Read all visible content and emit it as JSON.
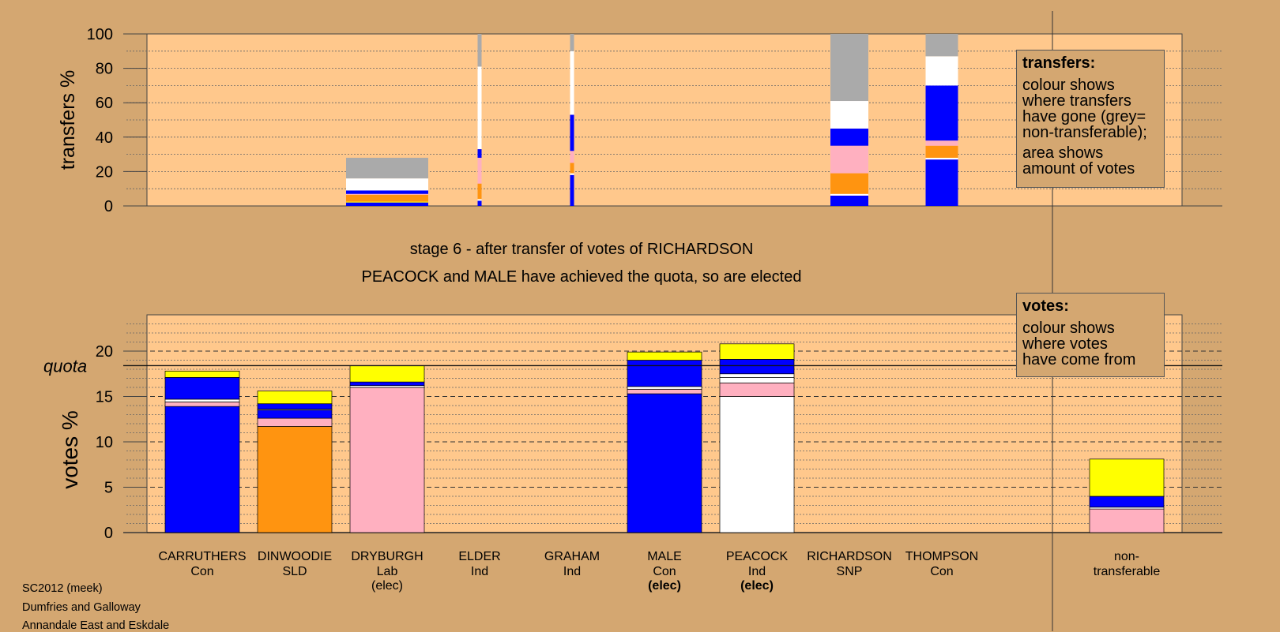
{
  "chart_data": {
    "type": "bar",
    "stage_text": "stage 6 - after transfer of votes of RICHARDSON",
    "result_text": "PEACOCK and MALE have achieved the quota, so are elected",
    "colors": {
      "Con": "#0000ff",
      "SLD": "#ff9410",
      "Lab": "#ffb0c0",
      "Ind": "#ffffff",
      "SNP": "#ffff00",
      "nontransferable": "#aaaaaa",
      "plot_bg": "#ffc88c",
      "page_bg": "#d4a771"
    },
    "transfers": {
      "ylabel": "transfers %",
      "ylim": [
        0,
        100
      ],
      "yticks": [
        0,
        20,
        40,
        60,
        80,
        100
      ],
      "bars": [
        {
          "candidate": "DRYBURGH",
          "segments": [
            {
              "party": "Con",
              "value": 2
            },
            {
              "party": "SNP",
              "value": 0.5
            },
            {
              "party": "SLD",
              "value": 4
            },
            {
              "party": "Lab",
              "value": 0.5
            },
            {
              "party": "Con",
              "value": 2
            },
            {
              "party": "Ind",
              "value": 7
            },
            {
              "party": "nontransferable",
              "value": 12
            }
          ]
        },
        {
          "candidate": "ELDER",
          "segments": [
            {
              "party": "Con",
              "value": 3
            },
            {
              "party": "Ind",
              "value": 1
            },
            {
              "party": "SLD",
              "value": 9
            },
            {
              "party": "Lab",
              "value": 15
            },
            {
              "party": "Con",
              "value": 5
            },
            {
              "party": "Ind",
              "value": 48
            },
            {
              "party": "nontransferable",
              "value": 19
            }
          ]
        },
        {
          "candidate": "GRAHAM",
          "segments": [
            {
              "party": "Con",
              "value": 18
            },
            {
              "party": "Ind",
              "value": 1
            },
            {
              "party": "SLD",
              "value": 6
            },
            {
              "party": "Lab",
              "value": 7
            },
            {
              "party": "Con",
              "value": 21
            },
            {
              "party": "Ind",
              "value": 37
            },
            {
              "party": "nontransferable",
              "value": 10
            }
          ]
        },
        {
          "candidate": "RICHARDSON",
          "segments": [
            {
              "party": "Con",
              "value": 6
            },
            {
              "party": "Ind",
              "value": 1
            },
            {
              "party": "SLD",
              "value": 12
            },
            {
              "party": "Lab",
              "value": 16
            },
            {
              "party": "Con",
              "value": 10
            },
            {
              "party": "Ind",
              "value": 16
            },
            {
              "party": "nontransferable",
              "value": 39
            }
          ]
        },
        {
          "candidate": "THOMPSON",
          "segments": [
            {
              "party": "Con",
              "value": 27
            },
            {
              "party": "Ind",
              "value": 1
            },
            {
              "party": "SLD",
              "value": 7
            },
            {
              "party": "Lab",
              "value": 3
            },
            {
              "party": "Con",
              "value": 32
            },
            {
              "party": "Ind",
              "value": 17
            },
            {
              "party": "nontransferable",
              "value": 13
            }
          ]
        }
      ]
    },
    "votes": {
      "ylabel": "votes %",
      "ylim": [
        0,
        24
      ],
      "yticks": [
        0,
        5,
        10,
        15,
        20
      ],
      "quota": 18.4,
      "quota_label": "quota",
      "candidates": [
        {
          "name": "CARRUTHERS",
          "party": "Con",
          "status": "",
          "segments": [
            {
              "party": "Con",
              "value": 13.9
            },
            {
              "party": "Lab",
              "value": 0.5
            },
            {
              "party": "Ind",
              "value": 0.3
            },
            {
              "party": "Con",
              "value": 2.4
            },
            {
              "party": "SNP",
              "value": 0.7
            }
          ]
        },
        {
          "name": "DINWOODIE",
          "party": "SLD",
          "status": "",
          "segments": [
            {
              "party": "SLD",
              "value": 11.7
            },
            {
              "party": "Lab",
              "value": 0.9
            },
            {
              "party": "Con",
              "value": 0.9
            },
            {
              "party": "Ind",
              "value": 0.1
            },
            {
              "party": "Con",
              "value": 0.6
            },
            {
              "party": "SNP",
              "value": 1.4
            }
          ]
        },
        {
          "name": "DRYBURGH",
          "party": "Lab",
          "status": "(elec)",
          "segments": [
            {
              "party": "Lab",
              "value": 16.0
            },
            {
              "party": "Ind",
              "value": 0.2
            },
            {
              "party": "Con",
              "value": 0.4
            },
            {
              "party": "SNP",
              "value": 1.8
            }
          ]
        },
        {
          "name": "ELDER",
          "party": "Ind",
          "status": "",
          "segments": []
        },
        {
          "name": "GRAHAM",
          "party": "Ind",
          "status": "",
          "segments": []
        },
        {
          "name": "MALE",
          "party": "Con",
          "status": "(elec)",
          "segments": [
            {
              "party": "Con",
              "value": 15.3
            },
            {
              "party": "Lab",
              "value": 0.5
            },
            {
              "party": "Ind",
              "value": 0.3
            },
            {
              "party": "Con",
              "value": 2.9
            },
            {
              "party": "SNP",
              "value": 0.9
            }
          ]
        },
        {
          "name": "PEACOCK",
          "party": "Ind",
          "status": "(elec)",
          "segments": [
            {
              "party": "Ind",
              "value": 15.0
            },
            {
              "party": "Lab",
              "value": 1.5
            },
            {
              "party": "Ind",
              "value": 0.6
            },
            {
              "party": "Ind",
              "value": 0.4
            },
            {
              "party": "Con",
              "value": 1.6
            },
            {
              "party": "SNP",
              "value": 1.7
            }
          ]
        },
        {
          "name": "RICHARDSON",
          "party": "SNP",
          "status": "",
          "segments": []
        },
        {
          "name": "THOMPSON",
          "party": "Con",
          "status": "",
          "segments": []
        }
      ],
      "nontransferable": {
        "label_line1": "non-",
        "label_line2": "transferable",
        "segments": [
          {
            "party": "Lab",
            "value": 2.6
          },
          {
            "party": "Ind",
            "value": 0.2
          },
          {
            "party": "Con",
            "value": 1.2
          },
          {
            "party": "SNP",
            "value": 4.1
          }
        ]
      }
    }
  },
  "legend": {
    "transfers": {
      "title": "transfers:",
      "body1": "colour shows\nwhere transfers\nhave gone (grey=\nnon-transferable);",
      "body2": "area shows\namount of votes"
    },
    "votes": {
      "title": "votes:",
      "body1": "colour shows\nwhere votes\nhave come from"
    }
  },
  "footer": {
    "line1": "SC2012 (meek)",
    "line2": "Dumfries and Galloway",
    "line3": "Annandale East and Eskdale"
  }
}
